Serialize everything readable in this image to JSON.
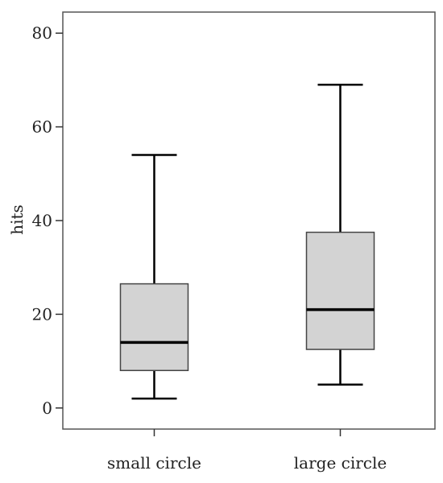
{
  "chart_data": {
    "type": "boxplot",
    "title": "",
    "xlabel": "",
    "ylabel": "hits",
    "ylim": [
      -4.5,
      84.5
    ],
    "yticks": [
      0,
      20,
      40,
      60,
      80
    ],
    "ytick_labels": [
      "0",
      "20",
      "40",
      "60",
      "80"
    ],
    "grid": false,
    "categories": [
      "small circle",
      "large circle"
    ],
    "boxes": [
      {
        "category": "small circle",
        "whisker_low": 2,
        "q1": 8,
        "median": 14,
        "q3": 26.5,
        "whisker_high": 54
      },
      {
        "category": "large circle",
        "whisker_low": 5,
        "q1": 12.5,
        "median": 21,
        "q3": 37.5,
        "whisker_high": 69
      }
    ],
    "colors": {
      "box_fill": "#d3d3d3",
      "line": "#000000",
      "frame": "#555555"
    }
  }
}
